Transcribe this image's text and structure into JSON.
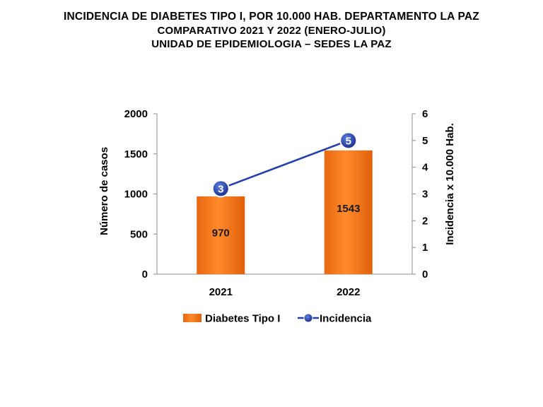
{
  "header": {
    "line1": "INCIDENCIA  DE DIABETES  TIPO I, POR 10.000 HAB. DEPARTAMENTO  LA PAZ",
    "line2": "COMPARATIVO  2021 Y 2022 (ENERO-JULIO)",
    "line3": "UNIDAD DE EPIDEMIOLOGIA – SEDES LA PAZ"
  },
  "chart_data": {
    "type": "bar",
    "categories": [
      "2021",
      "2022"
    ],
    "series": [
      {
        "name": "Diabetes Tipo I",
        "type": "bar",
        "axis": "left",
        "values": [
          970,
          1543
        ],
        "labels": [
          "970",
          "1543"
        ],
        "color": "#f47b20"
      },
      {
        "name": "Incidencia",
        "type": "line",
        "axis": "right",
        "values": [
          3.2,
          5.0
        ],
        "labels": [
          "3",
          "5"
        ],
        "color": "#1f3fae"
      }
    ],
    "ylabel": "Número de casos",
    "y2label": "Incidencia x 10.000 Hab.",
    "ylim": [
      0,
      2000
    ],
    "y2lim": [
      0,
      6
    ],
    "yticks": [
      "0",
      "500",
      "1000",
      "1500",
      "2000"
    ],
    "y2ticks": [
      "0",
      "1",
      "2",
      "3",
      "4",
      "5",
      "6"
    ],
    "grid": false,
    "legend": "bottom"
  }
}
